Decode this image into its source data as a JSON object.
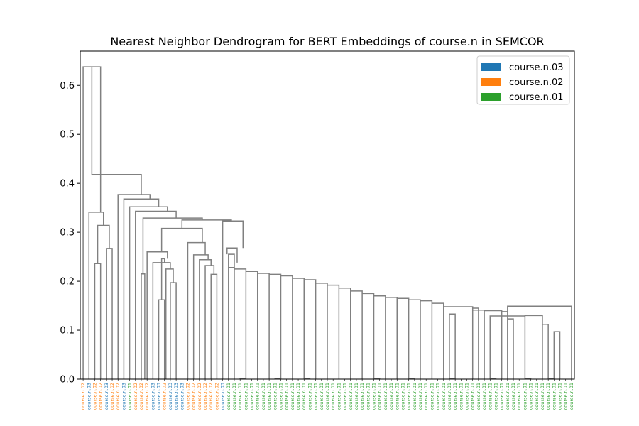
{
  "chart_data": {
    "type": "dendrogram",
    "title": "Nearest Neighbor Dendrogram for BERT Embeddings of course.n in SEMCOR",
    "ylim": [
      0,
      0.67
    ],
    "yticks": [
      "0.0",
      "0.1",
      "0.2",
      "0.3",
      "0.4",
      "0.5",
      "0.6"
    ],
    "ytick_values": [
      0,
      0.1,
      0.2,
      0.3,
      0.4,
      0.5,
      0.6
    ],
    "link_color": "#808080",
    "grid": false,
    "legend_placement": "top-right",
    "legend": [
      {
        "label": "course.n.03",
        "color": "#1f77b4"
      },
      {
        "label": "course.n.02",
        "color": "#ff7f0e"
      },
      {
        "label": "course.n.01",
        "color": "#2ca02c"
      }
    ],
    "leaves": [
      {
        "label": "course.n.02",
        "sense": "n02"
      },
      {
        "label": "course.n.03",
        "sense": "n03"
      },
      {
        "label": "course.n.02",
        "sense": "n02"
      },
      {
        "label": "course.n.02",
        "sense": "n02"
      },
      {
        "label": "course.n.03",
        "sense": "n03"
      },
      {
        "label": "course.n.02",
        "sense": "n02"
      },
      {
        "label": "course.n.02",
        "sense": "n02"
      },
      {
        "label": "course.n.03",
        "sense": "n03"
      },
      {
        "label": "course.n.01",
        "sense": "n01"
      },
      {
        "label": "course.n.02",
        "sense": "n02"
      },
      {
        "label": "course.n.02",
        "sense": "n02"
      },
      {
        "label": "course.n.02",
        "sense": "n02"
      },
      {
        "label": "course.n.03",
        "sense": "n03"
      },
      {
        "label": "course.n.03",
        "sense": "n03"
      },
      {
        "label": "course.n.02",
        "sense": "n02"
      },
      {
        "label": "course.n.03",
        "sense": "n03"
      },
      {
        "label": "course.n.03",
        "sense": "n03"
      },
      {
        "label": "course.n.03",
        "sense": "n03"
      },
      {
        "label": "course.n.02",
        "sense": "n02"
      },
      {
        "label": "course.n.02",
        "sense": "n02"
      },
      {
        "label": "course.n.02",
        "sense": "n02"
      },
      {
        "label": "course.n.02",
        "sense": "n02"
      },
      {
        "label": "course.n.02",
        "sense": "n02"
      },
      {
        "label": "course.n.02",
        "sense": "n02"
      },
      {
        "label": "course.n.03",
        "sense": "n03"
      },
      {
        "label": "course.n.01",
        "sense": "n01"
      },
      {
        "label": "course.n.01",
        "sense": "n01"
      },
      {
        "label": "course.n.01",
        "sense": "n01"
      },
      {
        "label": "course.n.01",
        "sense": "n01"
      },
      {
        "label": "course.n.01",
        "sense": "n01"
      },
      {
        "label": "course.n.01",
        "sense": "n01"
      },
      {
        "label": "course.n.01",
        "sense": "n01"
      },
      {
        "label": "course.n.01",
        "sense": "n01"
      },
      {
        "label": "course.n.01",
        "sense": "n01"
      },
      {
        "label": "course.n.01",
        "sense": "n01"
      },
      {
        "label": "course.n.01",
        "sense": "n01"
      },
      {
        "label": "course.n.01",
        "sense": "n01"
      },
      {
        "label": "course.n.01",
        "sense": "n01"
      },
      {
        "label": "course.n.01",
        "sense": "n01"
      },
      {
        "label": "course.n.01",
        "sense": "n01"
      },
      {
        "label": "course.n.01",
        "sense": "n01"
      },
      {
        "label": "course.n.01",
        "sense": "n01"
      },
      {
        "label": "course.n.01",
        "sense": "n01"
      },
      {
        "label": "course.n.01",
        "sense": "n01"
      },
      {
        "label": "course.n.01",
        "sense": "n01"
      },
      {
        "label": "course.n.01",
        "sense": "n01"
      },
      {
        "label": "course.n.01",
        "sense": "n01"
      },
      {
        "label": "course.n.01",
        "sense": "n01"
      },
      {
        "label": "course.n.01",
        "sense": "n01"
      },
      {
        "label": "course.n.01",
        "sense": "n01"
      },
      {
        "label": "course.n.01",
        "sense": "n01"
      },
      {
        "label": "course.n.01",
        "sense": "n01"
      },
      {
        "label": "course.n.01",
        "sense": "n01"
      },
      {
        "label": "course.n.01",
        "sense": "n01"
      },
      {
        "label": "course.n.01",
        "sense": "n01"
      },
      {
        "label": "course.n.01",
        "sense": "n01"
      },
      {
        "label": "course.n.01",
        "sense": "n01"
      },
      {
        "label": "course.n.01",
        "sense": "n01"
      },
      {
        "label": "course.n.01",
        "sense": "n01"
      },
      {
        "label": "course.n.01",
        "sense": "n01"
      },
      {
        "label": "course.n.01",
        "sense": "n01"
      },
      {
        "label": "course.n.01",
        "sense": "n01"
      },
      {
        "label": "course.n.01",
        "sense": "n01"
      },
      {
        "label": "course.n.01",
        "sense": "n01"
      },
      {
        "label": "course.n.01",
        "sense": "n01"
      },
      {
        "label": "course.n.01",
        "sense": "n01"
      },
      {
        "label": "course.n.01",
        "sense": "n01"
      },
      {
        "label": "course.n.01",
        "sense": "n01"
      },
      {
        "label": "course.n.01",
        "sense": "n01"
      },
      {
        "label": "course.n.01",
        "sense": "n01"
      },
      {
        "label": "course.n.01",
        "sense": "n01"
      },
      {
        "label": "course.n.01",
        "sense": "n01"
      },
      {
        "label": "course.n.01",
        "sense": "n01"
      },
      {
        "label": "course.n.01",
        "sense": "n01"
      },
      {
        "label": "course.n.01",
        "sense": "n01"
      },
      {
        "label": "course.n.01",
        "sense": "n01"
      },
      {
        "label": "course.n.01",
        "sense": "n01"
      },
      {
        "label": "course.n.01",
        "sense": "n01"
      },
      {
        "label": "course.n.01",
        "sense": "n01"
      },
      {
        "label": "course.n.01",
        "sense": "n01"
      },
      {
        "label": "course.n.01",
        "sense": "n01"
      },
      {
        "label": "course.n.01",
        "sense": "n01"
      },
      {
        "label": "course.n.01",
        "sense": "n01"
      },
      {
        "label": "course.n.01",
        "sense": "n01"
      },
      {
        "label": "course.n.01",
        "sense": "n01"
      }
    ],
    "merges": [
      {
        "a": 27,
        "b": 28,
        "h": 0.001
      },
      {
        "a": 33,
        "b": 34,
        "h": 0.001
      },
      {
        "a": 38,
        "b": 39,
        "h": 0.001
      },
      {
        "a": 50,
        "b": 51,
        "h": 0.001
      },
      {
        "a": 56,
        "b": 57,
        "h": 0.001
      },
      {
        "a": 63,
        "b": 64,
        "h": 0.001
      },
      {
        "a": 70,
        "b": 71,
        "h": 0.001
      },
      {
        "a": 76,
        "b": 77,
        "h": 0.001
      },
      {
        "a": 80,
        "b": 81,
        "h": 0.001
      },
      {
        "a": 81,
        "b": 82,
        "h": 0.097
      },
      {
        "a": 79,
        "b": 80,
        "h": 0.112
      },
      {
        "a": 76,
        "b": 79,
        "h": 0.13
      },
      {
        "a": 73,
        "b": 74,
        "h": 0.123
      },
      {
        "a": 70,
        "b": 76,
        "h": 0.129
      },
      {
        "a": 72,
        "b": 73,
        "h": 0.138
      },
      {
        "a": 67,
        "b": 69,
        "h": 0.141
      },
      {
        "a": 67,
        "b": 68,
        "h": 0.145
      },
      {
        "a": 69,
        "b": 72,
        "h": 0.14
      },
      {
        "a": 63,
        "b": 64,
        "h": 0.133
      },
      {
        "a": 62,
        "b": 67,
        "h": 0.148
      },
      {
        "a": 73,
        "b": 84,
        "h": 0.149
      },
      {
        "a": 84,
        "b": 85,
        "h": 0.147
      },
      {
        "a": 60,
        "b": 62,
        "h": 0.155
      },
      {
        "a": 58,
        "b": 60,
        "h": 0.16
      },
      {
        "a": 56,
        "b": 58,
        "h": 0.162
      },
      {
        "a": 54,
        "b": 56,
        "h": 0.165
      },
      {
        "a": 52,
        "b": 54,
        "h": 0.167
      },
      {
        "a": 50,
        "b": 52,
        "h": 0.17
      },
      {
        "a": 48,
        "b": 50,
        "h": 0.175
      },
      {
        "a": 46,
        "b": 48,
        "h": 0.18
      },
      {
        "a": 44,
        "b": 46,
        "h": 0.186
      },
      {
        "a": 42,
        "b": 44,
        "h": 0.192
      },
      {
        "a": 40,
        "b": 42,
        "h": 0.196
      },
      {
        "a": 38,
        "b": 40,
        "h": 0.203
      },
      {
        "a": 36,
        "b": 38,
        "h": 0.206
      },
      {
        "a": 34,
        "b": 36,
        "h": 0.211
      },
      {
        "a": 32,
        "b": 34,
        "h": 0.214
      },
      {
        "a": 30,
        "b": 32,
        "h": 0.216
      },
      {
        "a": 28,
        "b": 30,
        "h": 0.22
      },
      {
        "a": 26,
        "b": 28,
        "h": 0.225
      },
      {
        "a": 25,
        "b": 26,
        "h": 0.228
      }
    ]
  }
}
